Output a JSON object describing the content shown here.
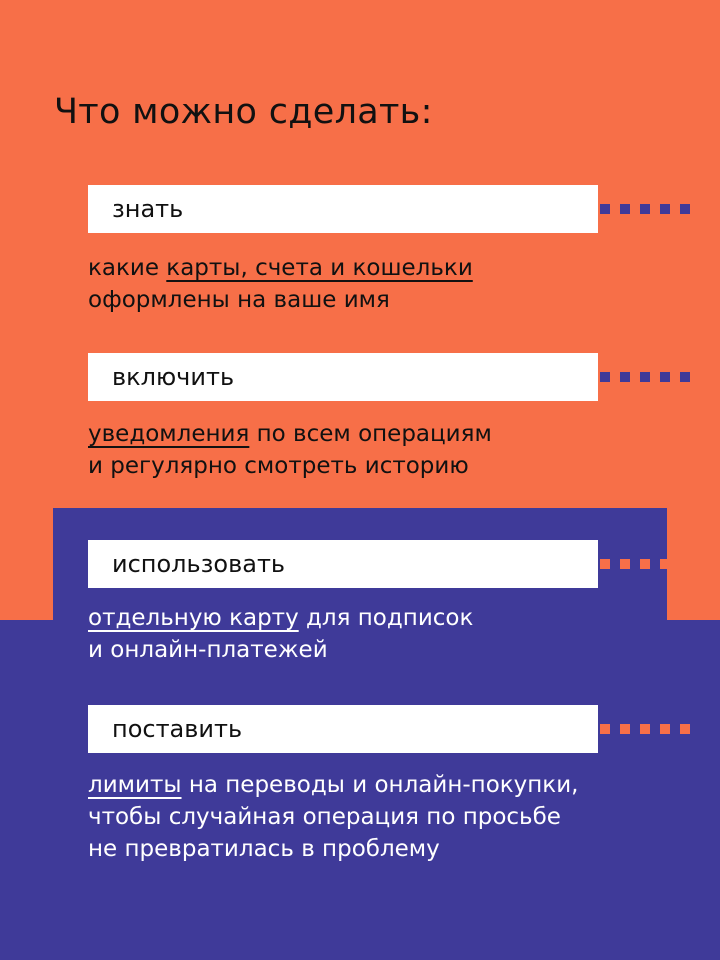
{
  "title": "Что можно сделать:",
  "colors": {
    "orange": "#F76F48",
    "purple": "#3F3A99"
  },
  "items": [
    {
      "label": "знать",
      "underlined": "карты, счета и кошельки",
      "before": "какие ",
      "after": "",
      "line2": "оформлены на ваше имя"
    },
    {
      "label": "включить",
      "underlined": "уведомления",
      "before": "",
      "after": " по всем операциям",
      "line2": "и регулярно смотреть историю"
    },
    {
      "label": "использовать",
      "underlined": "отдельную карту",
      "before": "",
      "after": " для подписок",
      "line2": "и онлайн-платежей"
    },
    {
      "label": "поставить",
      "underlined": "лимиты",
      "before": "",
      "after": " на переводы и онлайн-покупки,",
      "line2": "чтобы случайная операция по просьбе",
      "line3": "не превратилась в проблему"
    }
  ]
}
